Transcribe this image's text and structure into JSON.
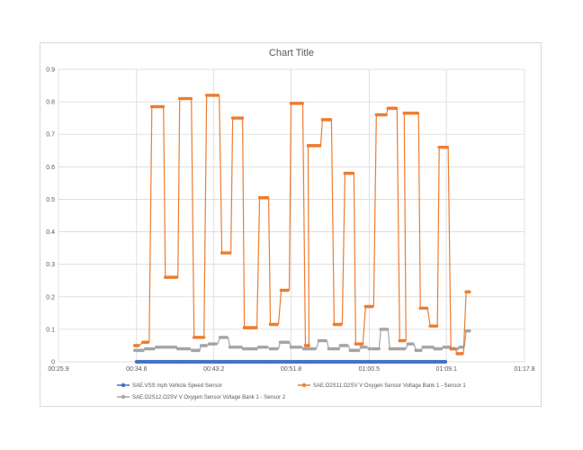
{
  "chart_data": {
    "type": "line",
    "title": "Chart Title",
    "x_ticks": [
      "00:25.9",
      "00:34.6",
      "00:43.2",
      "00:51.8",
      "01:00.5",
      "01:09.1",
      "01:17.8"
    ],
    "y_ticks": [
      "0",
      "0.1",
      "0.2",
      "0.3",
      "0.4",
      "0.5",
      "0.6",
      "0.7",
      "0.8",
      "0.9"
    ],
    "xlim_seconds": [
      25.9,
      77.8
    ],
    "ylim": [
      0,
      0.9
    ],
    "grid": true,
    "legend_position": "bottom",
    "series": [
      {
        "name": "SAE.VSS mph Vehicle Speed Sensor",
        "color": "#4472c4",
        "points": [
          [
            34.6,
            0
          ],
          [
            69.1,
            0
          ]
        ]
      },
      {
        "name": "SAE.O2S11.O2SV V Oxygen Sensor Voltage Bank 1 - Sensor 1",
        "color": "#ed7d31",
        "points": [
          [
            34.4,
            0.05
          ],
          [
            34.9,
            0.05
          ],
          [
            35.3,
            0.06
          ],
          [
            36.0,
            0.06
          ],
          [
            36.3,
            0.785
          ],
          [
            37.6,
            0.785
          ],
          [
            37.8,
            0.26
          ],
          [
            39.2,
            0.26
          ],
          [
            39.4,
            0.81
          ],
          [
            40.7,
            0.81
          ],
          [
            41.0,
            0.075
          ],
          [
            42.1,
            0.075
          ],
          [
            42.4,
            0.82
          ],
          [
            43.8,
            0.82
          ],
          [
            44.1,
            0.335
          ],
          [
            45.1,
            0.335
          ],
          [
            45.3,
            0.75
          ],
          [
            46.4,
            0.75
          ],
          [
            46.6,
            0.105
          ],
          [
            47.0,
            0.105
          ],
          [
            47.2,
            0.105
          ],
          [
            48.0,
            0.105
          ],
          [
            48.3,
            0.505
          ],
          [
            49.3,
            0.505
          ],
          [
            49.5,
            0.115
          ],
          [
            50.4,
            0.115
          ],
          [
            50.7,
            0.22
          ],
          [
            51.6,
            0.22
          ],
          [
            51.8,
            0.795
          ],
          [
            53.1,
            0.795
          ],
          [
            53.4,
            0.05
          ],
          [
            53.8,
            0.05
          ],
          [
            53.7,
            0.665
          ],
          [
            53.9,
            0.665
          ],
          [
            54.1,
            0.665
          ],
          [
            55.1,
            0.665
          ],
          [
            55.3,
            0.745
          ],
          [
            56.3,
            0.745
          ],
          [
            56.6,
            0.115
          ],
          [
            57.5,
            0.115
          ],
          [
            57.8,
            0.58
          ],
          [
            58.8,
            0.58
          ],
          [
            59.0,
            0.055
          ],
          [
            59.8,
            0.055
          ],
          [
            60.1,
            0.17
          ],
          [
            61.0,
            0.17
          ],
          [
            61.3,
            0.76
          ],
          [
            62.4,
            0.76
          ],
          [
            62.6,
            0.78
          ],
          [
            63.6,
            0.78
          ],
          [
            63.9,
            0.065
          ],
          [
            64.6,
            0.065
          ],
          [
            64.4,
            0.765
          ],
          [
            64.7,
            0.765
          ],
          [
            65.0,
            0.765
          ],
          [
            66.0,
            0.765
          ],
          [
            66.2,
            0.165
          ],
          [
            67.0,
            0.165
          ],
          [
            67.3,
            0.11
          ],
          [
            68.1,
            0.11
          ],
          [
            68.3,
            0.66
          ],
          [
            69.3,
            0.66
          ],
          [
            69.6,
            0.04
          ],
          [
            70.1,
            0.04
          ],
          [
            70.3,
            0.025
          ],
          [
            71.0,
            0.025
          ],
          [
            71.3,
            0.215
          ],
          [
            71.8,
            0.215
          ]
        ]
      },
      {
        "name": "SAE.O2S12.O2SV V Oxygen Sensor Voltage Bank 1 - Sensor 2",
        "color": "#a5a5a5",
        "points": [
          [
            34.4,
            0.035
          ],
          [
            35.4,
            0.035
          ],
          [
            35.6,
            0.04
          ],
          [
            36.6,
            0.04
          ],
          [
            36.8,
            0.045
          ],
          [
            39.0,
            0.045
          ],
          [
            39.2,
            0.04
          ],
          [
            40.5,
            0.04
          ],
          [
            40.8,
            0.035
          ],
          [
            41.6,
            0.035
          ],
          [
            41.8,
            0.05
          ],
          [
            42.5,
            0.05
          ],
          [
            42.7,
            0.055
          ],
          [
            43.6,
            0.055
          ],
          [
            43.9,
            0.075
          ],
          [
            44.8,
            0.075
          ],
          [
            45.0,
            0.045
          ],
          [
            46.3,
            0.045
          ],
          [
            46.5,
            0.04
          ],
          [
            48.0,
            0.04
          ],
          [
            48.2,
            0.045
          ],
          [
            49.2,
            0.045
          ],
          [
            49.5,
            0.04
          ],
          [
            50.4,
            0.04
          ],
          [
            50.6,
            0.06
          ],
          [
            51.6,
            0.06
          ],
          [
            51.8,
            0.045
          ],
          [
            53.0,
            0.045
          ],
          [
            53.2,
            0.04
          ],
          [
            54.6,
            0.04
          ],
          [
            54.9,
            0.065
          ],
          [
            55.8,
            0.065
          ],
          [
            56.0,
            0.04
          ],
          [
            57.1,
            0.04
          ],
          [
            57.3,
            0.05
          ],
          [
            58.2,
            0.05
          ],
          [
            58.4,
            0.035
          ],
          [
            59.4,
            0.035
          ],
          [
            59.6,
            0.045
          ],
          [
            60.3,
            0.045
          ],
          [
            60.5,
            0.04
          ],
          [
            61.6,
            0.04
          ],
          [
            61.8,
            0.1
          ],
          [
            62.6,
            0.1
          ],
          [
            62.8,
            0.04
          ],
          [
            64.6,
            0.04
          ],
          [
            64.8,
            0.055
          ],
          [
            65.5,
            0.055
          ],
          [
            65.7,
            0.035
          ],
          [
            66.3,
            0.035
          ],
          [
            66.5,
            0.045
          ],
          [
            67.6,
            0.045
          ],
          [
            67.8,
            0.04
          ],
          [
            68.6,
            0.04
          ],
          [
            68.8,
            0.045
          ],
          [
            69.6,
            0.045
          ],
          [
            69.8,
            0.04
          ],
          [
            70.4,
            0.04
          ],
          [
            70.6,
            0.045
          ],
          [
            71.1,
            0.045
          ],
          [
            71.3,
            0.095
          ],
          [
            71.8,
            0.095
          ]
        ]
      }
    ]
  }
}
